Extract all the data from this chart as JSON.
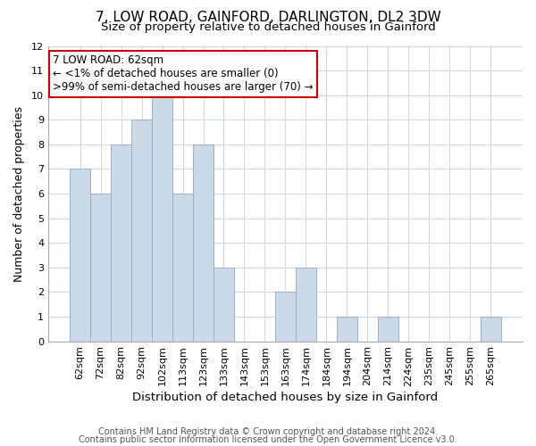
{
  "title": "7, LOW ROAD, GAINFORD, DARLINGTON, DL2 3DW",
  "subtitle": "Size of property relative to detached houses in Gainford",
  "xlabel": "Distribution of detached houses by size in Gainford",
  "ylabel": "Number of detached properties",
  "bar_labels": [
    "62sqm",
    "72sqm",
    "82sqm",
    "92sqm",
    "102sqm",
    "113sqm",
    "123sqm",
    "133sqm",
    "143sqm",
    "153sqm",
    "163sqm",
    "174sqm",
    "184sqm",
    "194sqm",
    "204sqm",
    "214sqm",
    "224sqm",
    "235sqm",
    "245sqm",
    "255sqm",
    "265sqm"
  ],
  "bar_values": [
    7,
    6,
    8,
    9,
    10,
    6,
    8,
    3,
    0,
    0,
    2,
    3,
    0,
    1,
    0,
    1,
    0,
    0,
    0,
    0,
    1
  ],
  "bar_color": "#ccd9e8",
  "bar_edge_color": "#9ab0c8",
  "annotation_box_text": "7 LOW ROAD: 62sqm\n← <1% of detached houses are smaller (0)\n>99% of semi-detached houses are larger (70) →",
  "annotation_box_edgecolor": "#cc0000",
  "annotation_box_facecolor": "#ffffff",
  "ylim": [
    0,
    12
  ],
  "yticks": [
    0,
    1,
    2,
    3,
    4,
    5,
    6,
    7,
    8,
    9,
    10,
    11,
    12
  ],
  "grid_color": "#d0d8e0",
  "background_color": "#ffffff",
  "footer_line1": "Contains HM Land Registry data © Crown copyright and database right 2024.",
  "footer_line2": "Contains public sector information licensed under the Open Government Licence v3.0.",
  "title_fontsize": 11,
  "subtitle_fontsize": 9.5,
  "xlabel_fontsize": 9.5,
  "ylabel_fontsize": 9,
  "tick_fontsize": 8,
  "annotation_fontsize": 8.5,
  "footer_fontsize": 7
}
